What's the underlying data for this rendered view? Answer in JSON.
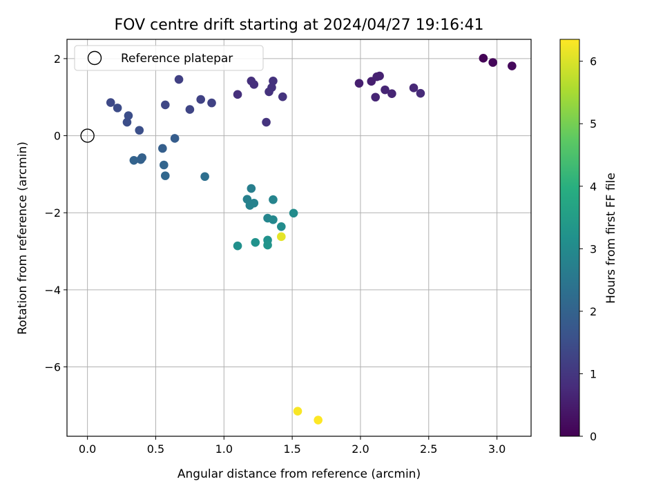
{
  "chart_data": {
    "type": "scatter",
    "title": "FOV centre drift starting at 2024/04/27 19:16:41",
    "xlabel": "Angular distance from reference (arcmin)",
    "ylabel": "Rotation from reference (arcmin)",
    "xlim": [
      -0.15,
      3.25
    ],
    "ylim": [
      -7.8,
      2.5
    ],
    "xticks": [
      0.0,
      0.5,
      1.0,
      1.5,
      2.0,
      2.5,
      3.0
    ],
    "xtick_labels": [
      "0.0",
      "0.5",
      "1.0",
      "1.5",
      "2.0",
      "2.5",
      "3.0"
    ],
    "yticks": [
      2,
      0,
      -2,
      -4,
      -6
    ],
    "ytick_labels": [
      "2",
      "0",
      "−2",
      "−4",
      "−6"
    ],
    "grid": true,
    "legend": {
      "position": "top-left",
      "entries": [
        "Reference platepar"
      ]
    },
    "reference_point": {
      "x": 0.0,
      "y": 0.0,
      "label": "Reference platepar"
    },
    "colorbar": {
      "label": "Hours from first FF file",
      "colormap": "viridis",
      "range": [
        0,
        6.35
      ],
      "ticks": [
        0,
        1,
        2,
        3,
        4,
        5,
        6
      ],
      "tick_labels": [
        "0",
        "1",
        "2",
        "3",
        "4",
        "5",
        "6"
      ]
    },
    "points": [
      {
        "x": 2.9,
        "y": 2.01,
        "c": 0.05
      },
      {
        "x": 2.97,
        "y": 1.9,
        "c": 0.1
      },
      {
        "x": 3.11,
        "y": 1.81,
        "c": 0.15
      },
      {
        "x": 1.99,
        "y": 1.36,
        "c": 0.55
      },
      {
        "x": 2.08,
        "y": 1.41,
        "c": 0.55
      },
      {
        "x": 2.12,
        "y": 1.53,
        "c": 0.6
      },
      {
        "x": 2.14,
        "y": 1.55,
        "c": 0.6
      },
      {
        "x": 2.11,
        "y": 1.0,
        "c": 0.65
      },
      {
        "x": 2.18,
        "y": 1.19,
        "c": 0.65
      },
      {
        "x": 2.23,
        "y": 1.09,
        "c": 0.65
      },
      {
        "x": 2.39,
        "y": 1.24,
        "c": 0.7
      },
      {
        "x": 2.44,
        "y": 1.1,
        "c": 0.75
      },
      {
        "x": 1.1,
        "y": 1.07,
        "c": 0.85
      },
      {
        "x": 1.2,
        "y": 1.42,
        "c": 0.85
      },
      {
        "x": 1.22,
        "y": 1.33,
        "c": 0.85
      },
      {
        "x": 1.36,
        "y": 1.42,
        "c": 0.9
      },
      {
        "x": 1.35,
        "y": 1.25,
        "c": 0.9
      },
      {
        "x": 1.33,
        "y": 1.14,
        "c": 0.9
      },
      {
        "x": 1.43,
        "y": 1.01,
        "c": 0.95
      },
      {
        "x": 1.31,
        "y": 0.35,
        "c": 0.95
      },
      {
        "x": 0.67,
        "y": 1.46,
        "c": 1.2
      },
      {
        "x": 0.83,
        "y": 0.94,
        "c": 1.25
      },
      {
        "x": 0.91,
        "y": 0.85,
        "c": 1.25
      },
      {
        "x": 0.75,
        "y": 0.68,
        "c": 1.3
      },
      {
        "x": 0.57,
        "y": 0.8,
        "c": 1.35
      },
      {
        "x": 0.17,
        "y": 0.86,
        "c": 1.4
      },
      {
        "x": 0.22,
        "y": 0.72,
        "c": 1.45
      },
      {
        "x": 0.3,
        "y": 0.52,
        "c": 1.5
      },
      {
        "x": 0.29,
        "y": 0.35,
        "c": 1.5
      },
      {
        "x": 0.38,
        "y": 0.14,
        "c": 1.55
      },
      {
        "x": 0.64,
        "y": -0.07,
        "c": 1.85
      },
      {
        "x": 0.55,
        "y": -0.33,
        "c": 1.9
      },
      {
        "x": 0.4,
        "y": -0.57,
        "c": 1.95
      },
      {
        "x": 0.39,
        "y": -0.62,
        "c": 1.95
      },
      {
        "x": 0.34,
        "y": -0.64,
        "c": 2.0
      },
      {
        "x": 0.56,
        "y": -0.76,
        "c": 2.05
      },
      {
        "x": 0.57,
        "y": -1.04,
        "c": 2.1
      },
      {
        "x": 0.86,
        "y": -1.06,
        "c": 2.3
      },
      {
        "x": 1.2,
        "y": -1.37,
        "c": 2.7
      },
      {
        "x": 1.17,
        "y": -1.65,
        "c": 2.75
      },
      {
        "x": 1.19,
        "y": -1.81,
        "c": 2.8
      },
      {
        "x": 1.22,
        "y": -1.75,
        "c": 2.8
      },
      {
        "x": 1.36,
        "y": -1.66,
        "c": 2.85
      },
      {
        "x": 1.32,
        "y": -2.14,
        "c": 2.9
      },
      {
        "x": 1.36,
        "y": -2.18,
        "c": 2.95
      },
      {
        "x": 1.51,
        "y": -2.01,
        "c": 3.05
      },
      {
        "x": 1.42,
        "y": -2.36,
        "c": 3.05
      },
      {
        "x": 1.1,
        "y": -2.86,
        "c": 3.15
      },
      {
        "x": 1.23,
        "y": -2.77,
        "c": 3.2
      },
      {
        "x": 1.32,
        "y": -2.71,
        "c": 3.2
      },
      {
        "x": 1.32,
        "y": -2.84,
        "c": 3.25
      },
      {
        "x": 1.42,
        "y": -2.62,
        "c": 6.1
      },
      {
        "x": 1.54,
        "y": -7.15,
        "c": 6.3
      },
      {
        "x": 1.69,
        "y": -7.38,
        "c": 6.35
      }
    ]
  }
}
